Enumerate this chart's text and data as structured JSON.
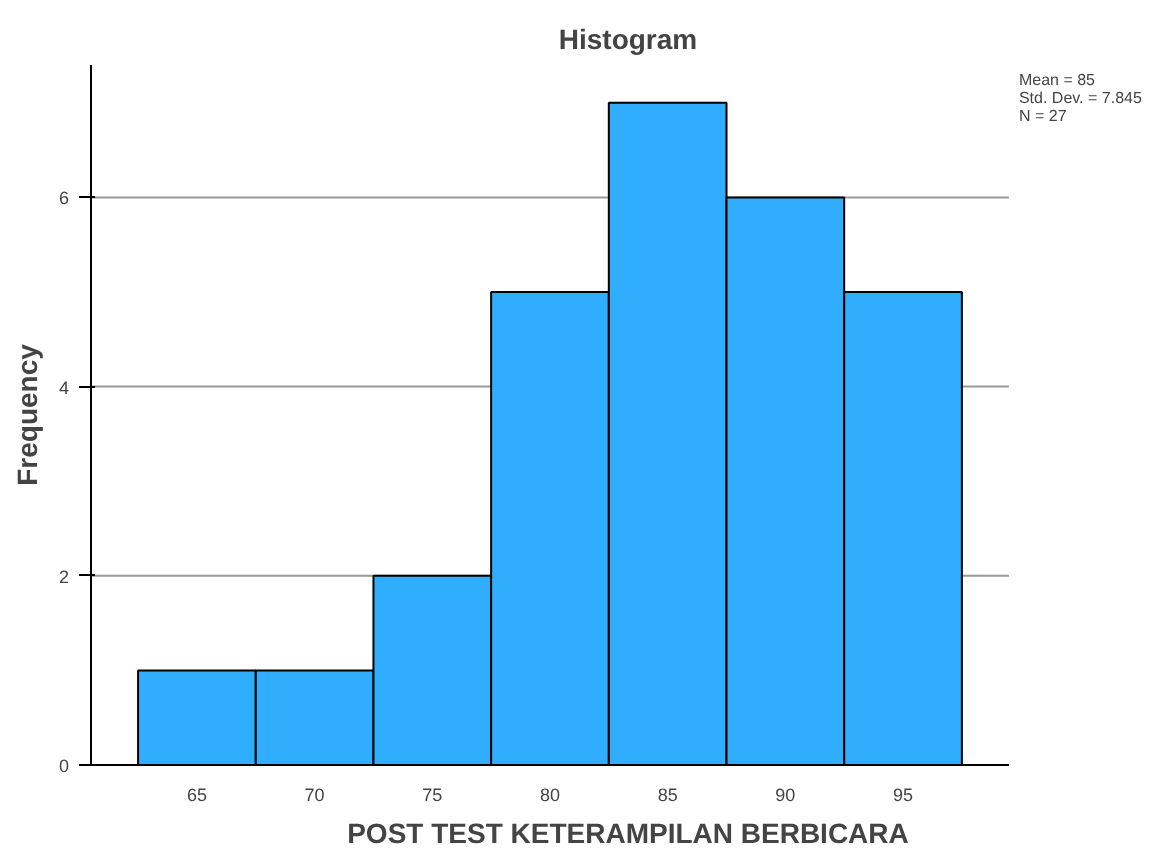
{
  "chart_data": {
    "type": "histogram",
    "title": "Histogram",
    "xlabel": "POST TEST KETERAMPILAN BERBICARA",
    "ylabel": "Frequency",
    "bins": [
      62.5,
      67.5,
      72.5,
      77.5,
      82.5,
      87.5,
      92.5,
      97.5
    ],
    "values": [
      1,
      1,
      2,
      5,
      7,
      6,
      5
    ],
    "color": "#31adfe",
    "xlim": [
      60.5,
      99.5
    ],
    "xticks": [
      65,
      70,
      75,
      80,
      85,
      90,
      95
    ],
    "ylim": [
      0,
      7.4
    ],
    "yticks": [
      0,
      2,
      4,
      6
    ],
    "grid": "y",
    "annotations": [
      "Mean = 85",
      "Std. Dev. = 7.845",
      "N = 27"
    ]
  }
}
